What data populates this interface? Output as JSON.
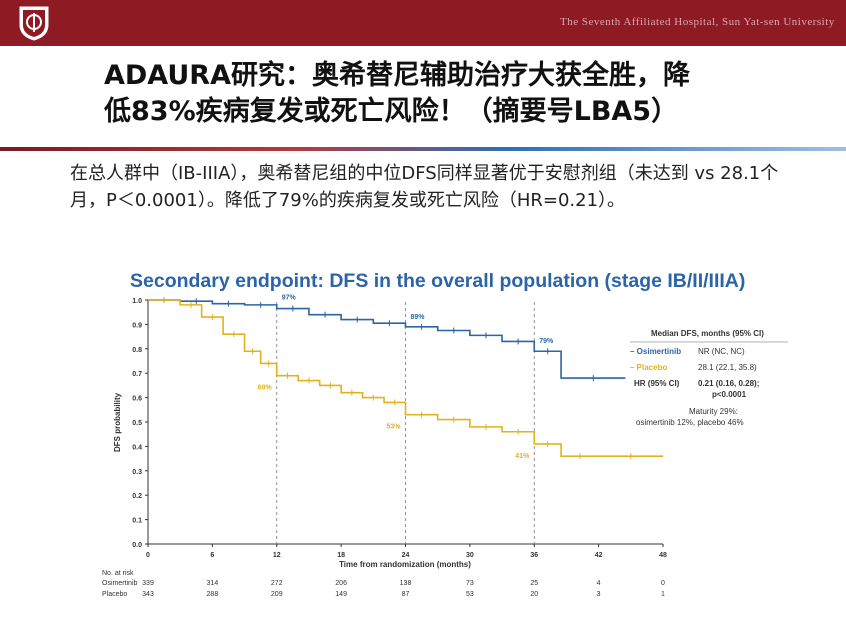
{
  "header": {
    "hospital_name": "The Seventh Affiliated Hospital, Sun Yat-sen University"
  },
  "slide": {
    "title_line1": "ADAURA研究：奥希替尼辅助治疗大获全胜，降",
    "title_line2": "低83%疾病复发或死亡风险！（摘要号LBA5）",
    "body": "在总人群中（IB-IIIA），奥希替尼组的中位DFS同样显著优于安慰剂组（未达到 vs 28.1个月，P＜0.0001）。降低了79%的疾病复发或死亡风险（HR=0.21）。"
  },
  "chart_data": {
    "type": "line",
    "title": "Secondary endpoint: DFS in the overall population (stage IB/II/IIIA)",
    "xlabel": "Time from randomization (months)",
    "ylabel": "DFS probability",
    "xlim": [
      0,
      48
    ],
    "ylim": [
      0,
      1.0
    ],
    "xticks": [
      0,
      6,
      12,
      18,
      24,
      30,
      36,
      42,
      48
    ],
    "yticks": [
      0,
      0.1,
      0.2,
      0.3,
      0.4,
      0.5,
      0.6,
      0.7,
      0.8,
      0.9,
      1.0
    ],
    "series": [
      {
        "name": "Osimertinib",
        "color": "#2b64a8",
        "x": [
          0,
          3,
          6,
          9,
          12,
          15,
          18,
          21,
          24,
          27,
          30,
          33,
          36,
          38.5,
          38.5,
          44.5
        ],
        "y": [
          1.0,
          0.995,
          0.985,
          0.98,
          0.965,
          0.94,
          0.92,
          0.905,
          0.89,
          0.875,
          0.855,
          0.83,
          0.79,
          0.78,
          0.68,
          0.68
        ]
      },
      {
        "name": "Placebo",
        "color": "#e2b21c",
        "x": [
          0,
          3,
          5,
          7,
          9,
          10.5,
          12,
          14,
          16,
          18,
          20,
          22,
          24,
          27,
          30,
          33,
          36,
          38.5,
          42,
          48
        ],
        "y": [
          1.0,
          0.98,
          0.93,
          0.86,
          0.79,
          0.74,
          0.69,
          0.67,
          0.65,
          0.62,
          0.6,
          0.58,
          0.53,
          0.51,
          0.48,
          0.46,
          0.41,
          0.36,
          0.36,
          0.36
        ]
      }
    ],
    "landmarks": [
      {
        "x": 12,
        "label": "97%",
        "series": "Osimertinib",
        "y": 0.97
      },
      {
        "x": 24,
        "label": "89%",
        "series": "Osimertinib",
        "y": 0.89
      },
      {
        "x": 36,
        "label": "79%",
        "series": "Osimertinib",
        "y": 0.79
      },
      {
        "x": 12,
        "label": "69%",
        "series": "Placebo",
        "y": 0.69
      },
      {
        "x": 24,
        "label": "53%",
        "series": "Placebo",
        "y": 0.53
      },
      {
        "x": 36,
        "label": "41%",
        "series": "Placebo",
        "y": 0.41
      }
    ],
    "legend": {
      "header": "Median DFS, months (95% CI)",
      "rows": [
        {
          "name": "– Osimertinib",
          "value": "NR (NC, NC)",
          "color": "#2b64a8"
        },
        {
          "name": "– Placebo",
          "value": "28.1 (22.1, 35.8)",
          "color": "#e2b21c"
        }
      ],
      "hr_label": "HR (95% CI)",
      "hr_value_line1": "0.21 (0.16, 0.28);",
      "hr_value_line2": "p<0.0001",
      "maturity_line1": "Maturity 29%:",
      "maturity_line2": "osimertinib 12%, placebo 46%"
    },
    "at_risk": {
      "label": "No. at risk",
      "rows": [
        {
          "name": "Osimertinib",
          "values": [
            "339",
            "314",
            "272",
            "206",
            "138",
            "73",
            "25",
            "4",
            "0"
          ]
        },
        {
          "name": "Placebo",
          "values": [
            "343",
            "288",
            "209",
            "149",
            "87",
            "53",
            "20",
            "3",
            "1"
          ]
        }
      ]
    }
  }
}
